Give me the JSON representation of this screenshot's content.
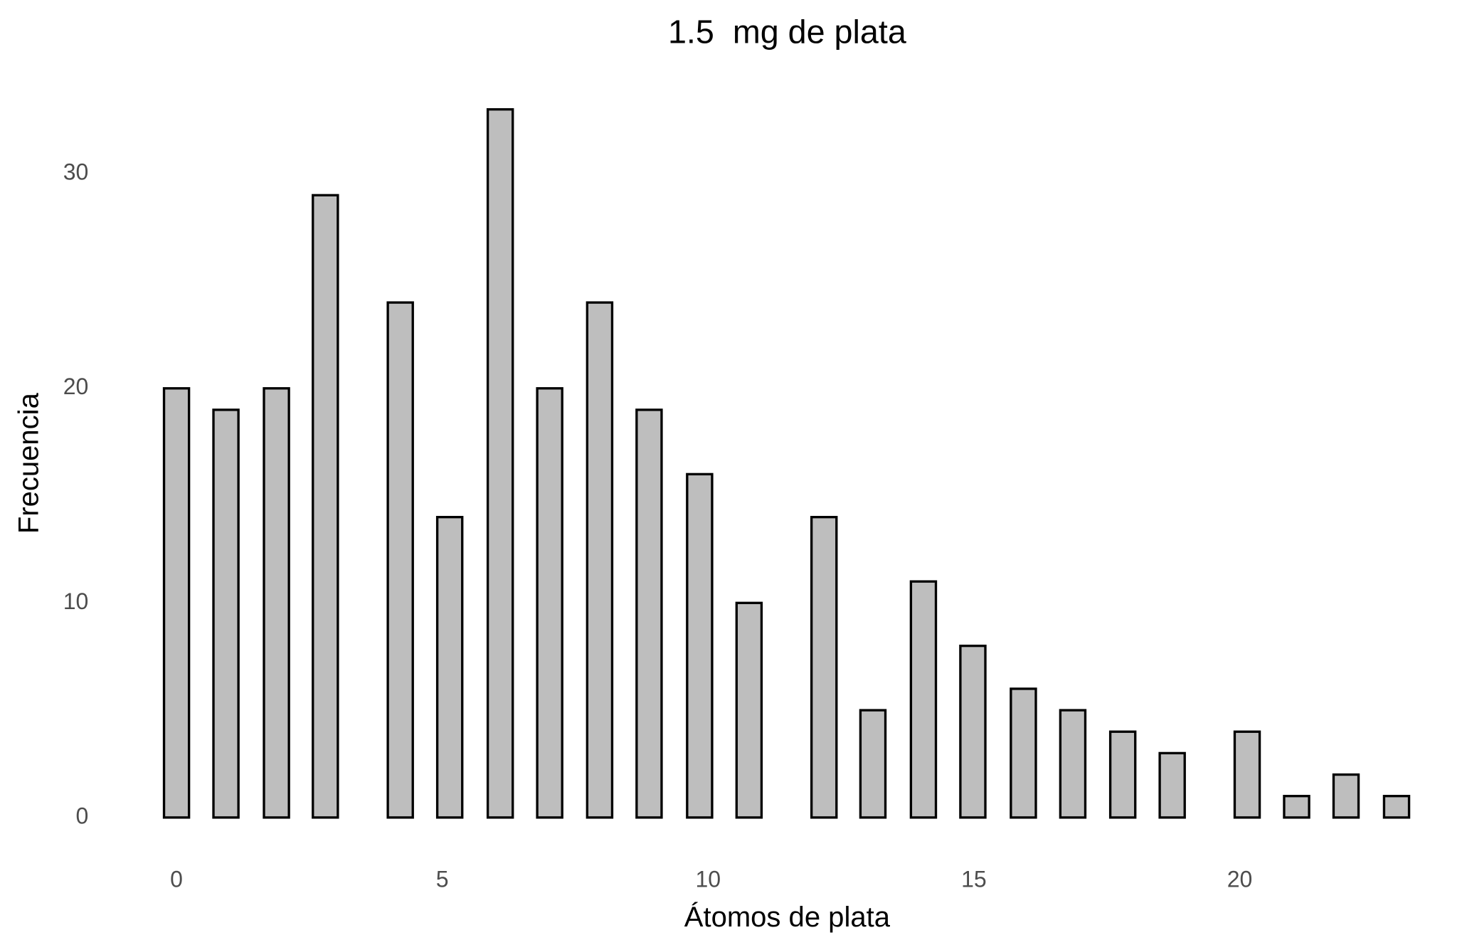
{
  "chart_data": {
    "type": "bar",
    "title": "1.5  mg de plata",
    "xlabel": "Átomos de plata",
    "ylabel": "Frecuencia",
    "x": [
      0,
      0.93,
      1.88,
      2.8,
      4.21,
      5.14,
      6.09,
      7.02,
      7.96,
      8.89,
      9.84,
      10.77,
      12.18,
      13.1,
      14.05,
      14.98,
      15.93,
      16.86,
      17.8,
      18.73,
      20.14,
      21.07,
      22,
      22.95
    ],
    "values": [
      20,
      19,
      20,
      29,
      24,
      14,
      33,
      20,
      24,
      19,
      16,
      10,
      14,
      5,
      11,
      8,
      6,
      5,
      4,
      3,
      4,
      1,
      2,
      1
    ],
    "bar_width": 0.47,
    "color": "#bebebe",
    "edge_color": "#000000",
    "xlim": [
      -0.46,
      23.29
    ],
    "xticks": [
      0,
      5,
      10,
      15,
      20
    ],
    "ylim": [
      0,
      35
    ],
    "yticks": [
      0,
      10,
      20,
      30
    ],
    "grid": false
  }
}
